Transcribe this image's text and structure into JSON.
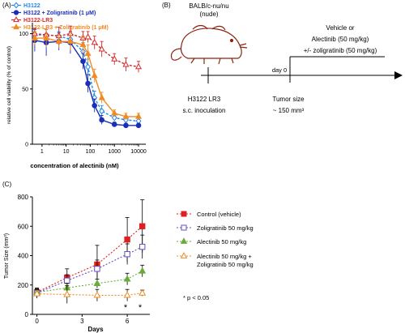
{
  "panel_a": {
    "label": "(A)",
    "colors": {
      "H3122": "#1e88e5",
      "H3122_zol": "#1a2fb8",
      "LR3": "#d62828",
      "LR3_zol": "#f08a24"
    },
    "legend": [
      {
        "key": "H3122",
        "text": "H3122",
        "color": "#1e88e5",
        "marker": "diamond-open"
      },
      {
        "key": "H3122_zol",
        "text": "H3122 + Zoligratinib (1 μM)",
        "color": "#1a2fb8",
        "marker": "circle-filled"
      },
      {
        "key": "LR3",
        "text": "H3122-LR3",
        "color": "#d62828",
        "marker": "triangle-open"
      },
      {
        "key": "LR3_zol",
        "text": "H3122-LR3 + Zoligratinib (1 μM)",
        "color": "#f08a24",
        "marker": "triangle-filled"
      }
    ]
  },
  "panel_b": {
    "label": "(B)",
    "mouse_label_1": "BALB/c-nu/nu",
    "mouse_label_2": "(nude)",
    "treatment_1": "Vehicle or",
    "treatment_2": "Alectinib (50 mg/kg)",
    "treatment_3": "+/-  zoligratinib (50 mg/kg)",
    "day_label": "day 0",
    "inoc_1": "H3122 LR3",
    "inoc_2": "s.c. inoculation",
    "tumor_1": "Tumor size",
    "tumor_2": "~ 150 mm³"
  },
  "panel_c": {
    "label": "(C)",
    "significance_note": "* p < 0.05",
    "star_1": "*",
    "star_2": "*"
  },
  "chart_data": [
    {
      "type": "line",
      "panel": "A",
      "xlabel": "concentration of alectinib (nM)",
      "ylabel": "relative cell viability (% of control)",
      "xscale": "log",
      "xlim": [
        0.4,
        20000
      ],
      "ylim": [
        0,
        110
      ],
      "x_ticks": [
        1,
        10,
        100,
        1000,
        10000
      ],
      "x_tick_labels": [
        "1",
        "10",
        "100",
        "1000",
        "10000"
      ],
      "y_ticks": [
        0,
        50,
        100
      ],
      "y_tick_labels": [
        "0",
        "50",
        "100"
      ],
      "x": [
        0.5,
        1.5,
        5,
        15,
        50,
        80,
        150,
        300,
        1000,
        3000,
        10000
      ],
      "series": [
        {
          "name": "H3122",
          "color": "#1e88e5",
          "marker": "diamond-open",
          "values": [
            99,
            99,
            98,
            95,
            84,
            70,
            42,
            30,
            24,
            22,
            21
          ],
          "errors": [
            5,
            5,
            4,
            6,
            8,
            7,
            6,
            5,
            3,
            3,
            3
          ]
        },
        {
          "name": "H3122 + Zoligratinib (1 μM)",
          "color": "#1a2fb8",
          "marker": "circle-filled",
          "values": [
            94,
            92,
            93,
            92,
            75,
            55,
            35,
            22,
            18,
            17,
            17
          ],
          "errors": [
            10,
            12,
            8,
            10,
            7,
            8,
            6,
            4,
            2,
            2,
            2
          ]
        },
        {
          "name": "H3122-LR3",
          "color": "#d62828",
          "marker": "triangle-open",
          "values": [
            100,
            99,
            98,
            100,
            96,
            97,
            92,
            86,
            77,
            72,
            70
          ],
          "errors": [
            5,
            5,
            8,
            7,
            6,
            5,
            6,
            7,
            5,
            6,
            5
          ]
        },
        {
          "name": "H3122-LR3 + Zoligratinib (1 μM)",
          "color": "#f08a24",
          "marker": "triangle-filled",
          "values": [
            96,
            96,
            93,
            93,
            90,
            82,
            62,
            42,
            28,
            25,
            25
          ],
          "errors": [
            6,
            8,
            6,
            8,
            8,
            8,
            6,
            5,
            3,
            3,
            3
          ]
        }
      ]
    },
    {
      "type": "line",
      "panel": "C",
      "xlabel": "Days",
      "ylabel": "Tumor Size (mm³)",
      "xlim": [
        -0.3,
        7.5
      ],
      "ylim": [
        0,
        800
      ],
      "x_ticks": [
        0,
        3,
        6
      ],
      "x_tick_labels": [
        "0",
        "3",
        "6"
      ],
      "y_ticks": [
        0,
        200,
        400,
        600,
        800
      ],
      "y_tick_labels": [
        "0",
        "200",
        "400",
        "600",
        "800"
      ],
      "x": [
        0,
        2,
        4,
        6,
        7
      ],
      "series": [
        {
          "name": "Control (vehicle)",
          "color": "#e02020",
          "marker": "square-filled",
          "values": [
            150,
            250,
            340,
            510,
            600
          ],
          "errors": [
            30,
            60,
            130,
            150,
            180
          ]
        },
        {
          "name": "Zoligratinib 50 mg/kg",
          "color": "#6a4fc0",
          "marker": "square-open",
          "values": [
            145,
            230,
            310,
            410,
            460
          ],
          "errors": [
            25,
            40,
            60,
            70,
            80
          ]
        },
        {
          "name": "Alectinib 50 mg/kg",
          "color": "#6aaa3a",
          "marker": "triangle-filled",
          "values": [
            150,
            180,
            210,
            240,
            295
          ],
          "errors": [
            25,
            30,
            30,
            40,
            40
          ]
        },
        {
          "name": "Alectinib 50 mg/kg +",
          "name_line2": "Zoligratinib 50 mg/kg",
          "color": "#f08a24",
          "marker": "triangle-open",
          "values": [
            140,
            135,
            130,
            130,
            145
          ],
          "errors": [
            30,
            60,
            40,
            40,
            20
          ]
        }
      ]
    }
  ]
}
